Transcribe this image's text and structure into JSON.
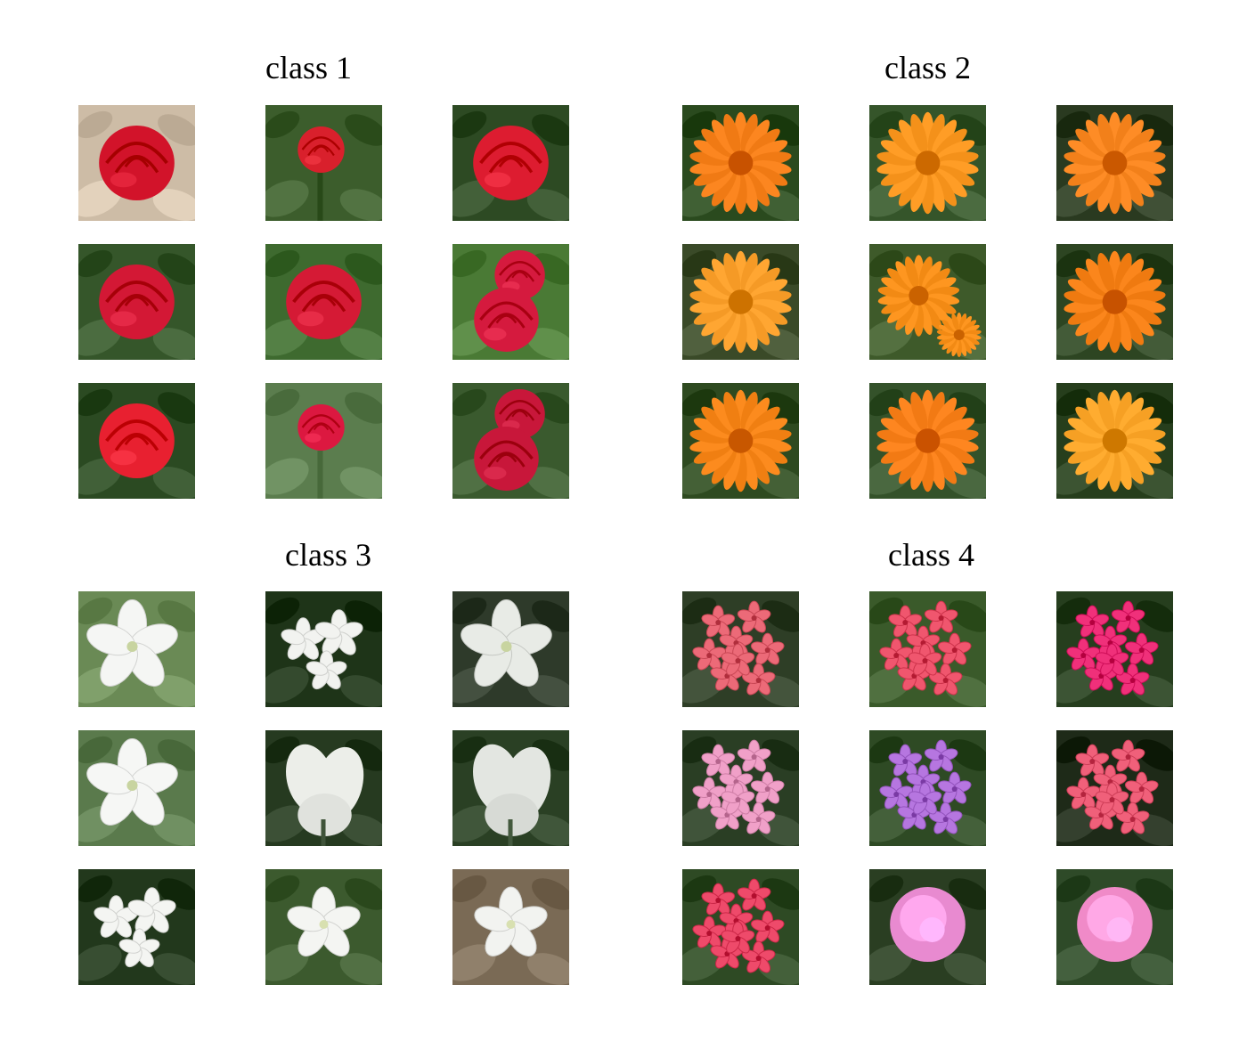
{
  "panels": [
    {
      "title": "class 1",
      "flower": "red-rose",
      "images": [
        {
          "bg": "#cdbca6",
          "fg": "#d2132a",
          "shape": "rose"
        },
        {
          "bg": "#3c5d2c",
          "fg": "#d9202c",
          "shape": "rose-small"
        },
        {
          "bg": "#2d4a23",
          "fg": "#dd1c30",
          "shape": "rose"
        },
        {
          "bg": "#35562a",
          "fg": "#d31835",
          "shape": "rose"
        },
        {
          "bg": "#3e6a2f",
          "fg": "#d51a35",
          "shape": "rose"
        },
        {
          "bg": "#4a7a35",
          "fg": "#d51a3e",
          "shape": "rose-pair"
        },
        {
          "bg": "#2b4a22",
          "fg": "#e82030",
          "shape": "rose"
        },
        {
          "bg": "#5b7d4e",
          "fg": "#dc1840",
          "shape": "rose-small"
        },
        {
          "bg": "#3a5a2e",
          "fg": "#c8173a",
          "shape": "rose-pair"
        }
      ]
    },
    {
      "title": "class 2",
      "flower": "orange-marigold",
      "images": [
        {
          "bg": "#2a4a1e",
          "fg": "#f07a14",
          "shape": "daisy"
        },
        {
          "bg": "#35552a",
          "fg": "#f4911a",
          "shape": "daisy"
        },
        {
          "bg": "#2a3a20",
          "fg": "#f2801a",
          "shape": "daisy"
        },
        {
          "bg": "#3a4a28",
          "fg": "#f59a26",
          "shape": "daisy"
        },
        {
          "bg": "#3e5a2a",
          "fg": "#f28a14",
          "shape": "daisy-pair"
        },
        {
          "bg": "#2d4522",
          "fg": "#ef7a10",
          "shape": "daisy"
        },
        {
          "bg": "#2e4a20",
          "fg": "#f07f12",
          "shape": "daisy"
        },
        {
          "bg": "#34522a",
          "fg": "#f27a14",
          "shape": "daisy"
        },
        {
          "bg": "#263e1c",
          "fg": "#f6a024",
          "shape": "daisy"
        }
      ]
    },
    {
      "title": "class 3",
      "flower": "white-flower",
      "images": [
        {
          "bg": "#6a8a55",
          "fg": "#f5f6f4",
          "shape": "bell"
        },
        {
          "bg": "#1e3418",
          "fg": "#f2f3f0",
          "shape": "star-cluster"
        },
        {
          "bg": "#2e3a2a",
          "fg": "#e8ebe6",
          "shape": "bell"
        },
        {
          "bg": "#5a7a4c",
          "fg": "#f6f7f5",
          "shape": "bell"
        },
        {
          "bg": "#263a20",
          "fg": "#eceee9",
          "shape": "iris"
        },
        {
          "bg": "#2a4024",
          "fg": "#e3e6e1",
          "shape": "iris"
        },
        {
          "bg": "#22381c",
          "fg": "#f4f5f2",
          "shape": "star-cluster"
        },
        {
          "bg": "#3c5a2e",
          "fg": "#f4f5f2",
          "shape": "star"
        },
        {
          "bg": "#7a6a55",
          "fg": "#f2f3f0",
          "shape": "star"
        }
      ]
    },
    {
      "title": "class 4",
      "flower": "pink-phlox",
      "images": [
        {
          "bg": "#2e3e26",
          "fg": "#ec6a78",
          "shape": "phlox"
        },
        {
          "bg": "#3a5a2a",
          "fg": "#f0566e",
          "shape": "phlox"
        },
        {
          "bg": "#263e1e",
          "fg": "#f0307a",
          "shape": "phlox"
        },
        {
          "bg": "#2a3e24",
          "fg": "#f0a0c8",
          "shape": "phlox"
        },
        {
          "bg": "#2e4a24",
          "fg": "#b676e0",
          "shape": "phlox"
        },
        {
          "bg": "#1e2a18",
          "fg": "#f0607a",
          "shape": "phlox"
        },
        {
          "bg": "#2e4a24",
          "fg": "#ee4a6a",
          "shape": "phlox"
        },
        {
          "bg": "#2a3e22",
          "fg": "#e88ad0",
          "shape": "peony"
        },
        {
          "bg": "#2e4a28",
          "fg": "#f08ac8",
          "shape": "peony"
        }
      ]
    }
  ]
}
